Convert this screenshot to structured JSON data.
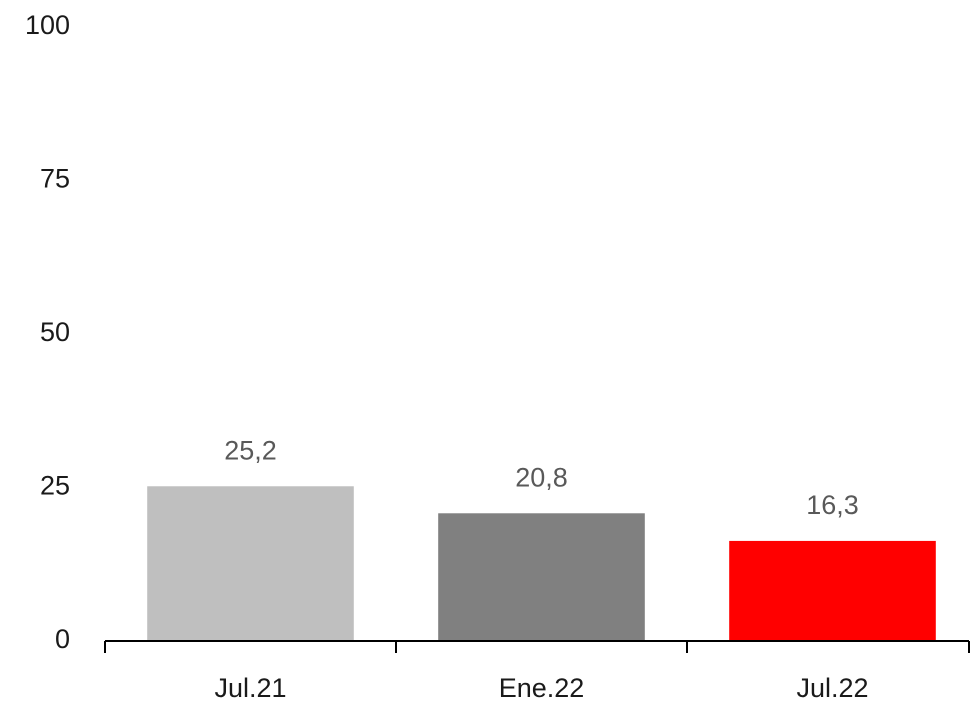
{
  "chart_data": {
    "type": "bar",
    "categories": [
      "Jul.21",
      "Ene.22",
      "Jul.22"
    ],
    "values": [
      25.2,
      20.8,
      16.3
    ],
    "value_labels": [
      "25,2",
      "20,8",
      "16,3"
    ],
    "colors": [
      "#bfbfbf",
      "#808080",
      "#ff0000"
    ],
    "ylim": [
      0,
      100
    ],
    "yticks": [
      0,
      25,
      50,
      75,
      100
    ],
    "grid": false
  }
}
